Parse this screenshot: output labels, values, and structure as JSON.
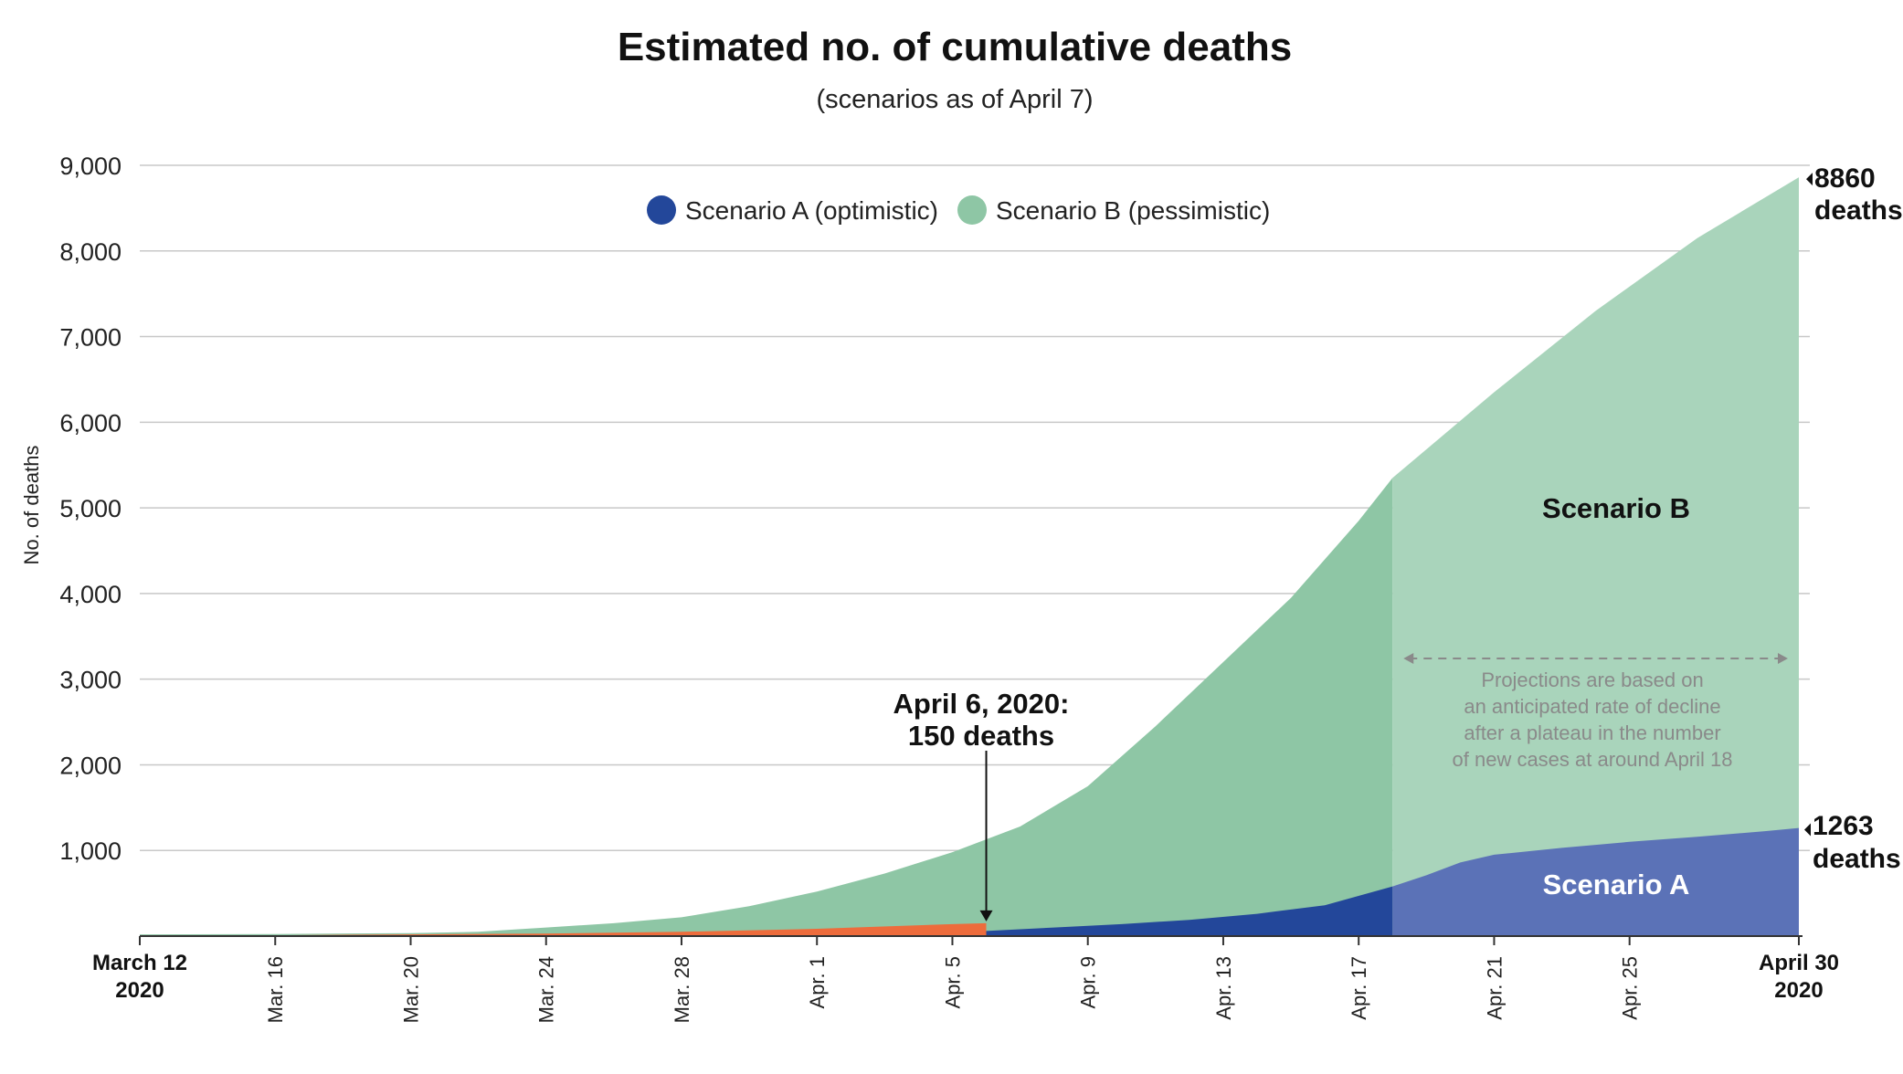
{
  "chart_data": {
    "type": "area",
    "title": "Estimated no. of cumulative deaths",
    "subtitle": "(scenarios as of April 7)",
    "ylabel": "No. of deaths",
    "xlabel": "",
    "ylim": [
      0,
      9000
    ],
    "yticks": [
      1000,
      2000,
      3000,
      4000,
      5000,
      6000,
      7000,
      8000,
      9000
    ],
    "ytick_labels": [
      "1,000",
      "2,000",
      "3,000",
      "4,000",
      "5,000",
      "6,000",
      "7,000",
      "8,000",
      "9,000"
    ],
    "x_start": "2020-03-12",
    "x_end": "2020-04-30",
    "xticks": [
      {
        "date": "2020-03-12",
        "label_top": "March 12",
        "label_bottom": "2020",
        "emphasis": true
      },
      {
        "date": "2020-03-16",
        "label": "Mar. 16"
      },
      {
        "date": "2020-03-20",
        "label": "Mar. 20"
      },
      {
        "date": "2020-03-24",
        "label": "Mar. 24"
      },
      {
        "date": "2020-03-28",
        "label": "Mar. 28"
      },
      {
        "date": "2020-04-01",
        "label": "Apr. 1"
      },
      {
        "date": "2020-04-05",
        "label": "Apr. 5"
      },
      {
        "date": "2020-04-09",
        "label": "Apr. 9"
      },
      {
        "date": "2020-04-13",
        "label": "Apr. 13"
      },
      {
        "date": "2020-04-17",
        "label": "Apr. 17"
      },
      {
        "date": "2020-04-21",
        "label": "Apr. 21"
      },
      {
        "date": "2020-04-25",
        "label": "Apr. 25"
      },
      {
        "date": "2020-04-30",
        "label_top": "April 30",
        "label_bottom": "2020",
        "emphasis": true
      }
    ],
    "actual": {
      "color": "#ed6c3c",
      "points": [
        [
          "2020-03-12",
          5
        ],
        [
          "2020-03-16",
          10
        ],
        [
          "2020-03-20",
          20
        ],
        [
          "2020-03-24",
          30
        ],
        [
          "2020-03-28",
          50
        ],
        [
          "2020-04-01",
          85
        ],
        [
          "2020-04-05",
          140
        ],
        [
          "2020-04-06",
          150
        ]
      ]
    },
    "series": [
      {
        "name": "Scenario A (optimistic)",
        "area_label": "Scenario A",
        "legend_color": "#23479a",
        "color_before_plateau": "#23479a",
        "color_after_plateau": "#5b72b7",
        "points": [
          [
            "2020-04-06",
            60
          ],
          [
            "2020-04-08",
            100
          ],
          [
            "2020-04-10",
            140
          ],
          [
            "2020-04-12",
            190
          ],
          [
            "2020-04-14",
            260
          ],
          [
            "2020-04-16",
            360
          ],
          [
            "2020-04-18",
            580
          ],
          [
            "2020-04-19",
            710
          ],
          [
            "2020-04-20",
            860
          ],
          [
            "2020-04-21",
            950
          ],
          [
            "2020-04-23",
            1030
          ],
          [
            "2020-04-25",
            1100
          ],
          [
            "2020-04-27",
            1160
          ],
          [
            "2020-04-29",
            1225
          ],
          [
            "2020-04-30",
            1263
          ]
        ]
      },
      {
        "name": "Scenario B (pessimistic)",
        "area_label": "Scenario B",
        "legend_color": "#8ec6a5",
        "color_before_plateau": "#8ec6a5",
        "color_after_plateau": "#a9d4bb",
        "points": [
          [
            "2020-03-12",
            20
          ],
          [
            "2020-03-16",
            25
          ],
          [
            "2020-03-20",
            35
          ],
          [
            "2020-03-22",
            50
          ],
          [
            "2020-03-24",
            100
          ],
          [
            "2020-03-26",
            150
          ],
          [
            "2020-03-28",
            220
          ],
          [
            "2020-03-30",
            350
          ],
          [
            "2020-04-01",
            520
          ],
          [
            "2020-04-03",
            730
          ],
          [
            "2020-04-05",
            980
          ],
          [
            "2020-04-07",
            1280
          ],
          [
            "2020-04-09",
            1750
          ],
          [
            "2020-04-11",
            2450
          ],
          [
            "2020-04-13",
            3200
          ],
          [
            "2020-04-15",
            3950
          ],
          [
            "2020-04-17",
            4850
          ],
          [
            "2020-04-18",
            5350
          ],
          [
            "2020-04-21",
            6350
          ],
          [
            "2020-04-24",
            7300
          ],
          [
            "2020-04-27",
            8150
          ],
          [
            "2020-04-30",
            8860
          ]
        ]
      }
    ],
    "plateau_date": "2020-04-18",
    "annotations": {
      "april6_line1": "April 6, 2020:",
      "april6_line2": "150 deaths",
      "april6_date": "2020-04-06",
      "april6_value": 150,
      "end_a_value": "1263",
      "end_a_unit": "deaths",
      "end_b_value": "8860",
      "end_b_unit": "deaths",
      "projection_text": [
        "Projections are based on",
        "an anticipated rate of decline",
        "after a plateau in the number",
        "of new cases at around April 18"
      ]
    },
    "legend_placement": "top-center",
    "grid": true
  }
}
